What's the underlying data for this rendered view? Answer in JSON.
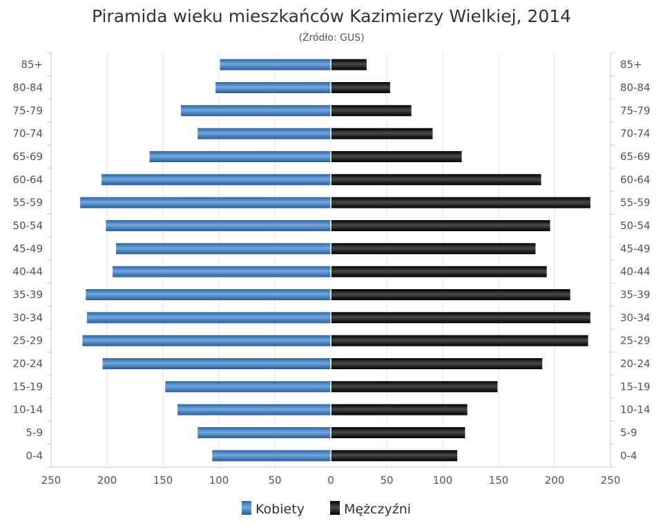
{
  "chart_data": {
    "type": "bar",
    "orientation": "horizontal",
    "title": "Piramida wieku mieszkańców Kazimierzy Wielkiej, 2014",
    "subtitle": "(Źródło: GUS)",
    "categories": [
      "0-4",
      "5-9",
      "10-14",
      "15-19",
      "20-24",
      "25-29",
      "30-34",
      "35-39",
      "40-44",
      "45-49",
      "50-54",
      "55-59",
      "60-64",
      "65-69",
      "70-74",
      "75-79",
      "80-84",
      "85+"
    ],
    "series": [
      {
        "name": "Kobiety",
        "color": "#3f7fc4",
        "values": [
          106,
          119,
          137,
          148,
          204,
          222,
          218,
          219,
          195,
          192,
          201,
          224,
          205,
          162,
          119,
          134,
          103,
          99
        ]
      },
      {
        "name": "Mężczyźni",
        "color": "#1a1a1a",
        "values": [
          113,
          120,
          122,
          149,
          189,
          230,
          232,
          214,
          193,
          183,
          196,
          232,
          188,
          117,
          91,
          72,
          53,
          32
        ]
      }
    ],
    "x_ticks": [
      "250",
      "200",
      "150",
      "100",
      "50",
      "0",
      "50",
      "100",
      "150",
      "200",
      "250"
    ],
    "xlim": [
      -250,
      250
    ],
    "grid": true,
    "legend": "bottom"
  }
}
